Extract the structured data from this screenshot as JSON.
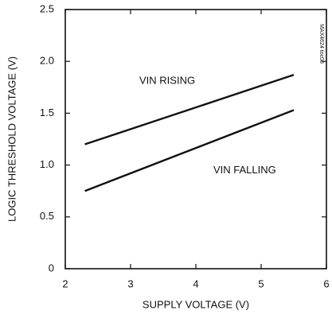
{
  "chart_data": {
    "type": "line",
    "xlabel": "SUPPLY VOLTAGE (V)",
    "ylabel": "LOGIC THRESHOLD VOLTAGE (V)",
    "annotation": "MAX4624 toc08",
    "x": [
      2.3,
      5.5
    ],
    "series": [
      {
        "name": "VIN RISING",
        "color": "#111111",
        "values": [
          1.2,
          1.87
        ]
      },
      {
        "name": "VIN FALLING",
        "color": "#111111",
        "values": [
          0.75,
          1.53
        ]
      }
    ],
    "xlim": [
      2,
      6
    ],
    "xticks": [
      2,
      3,
      4,
      5,
      6
    ],
    "ylim": [
      0,
      2.5
    ],
    "yticks": [
      0,
      0.5,
      {
        "value": 1,
        "label": "1.0"
      },
      1.5,
      {
        "value": 2,
        "label": "2.0"
      },
      2.5
    ],
    "grid": false
  }
}
